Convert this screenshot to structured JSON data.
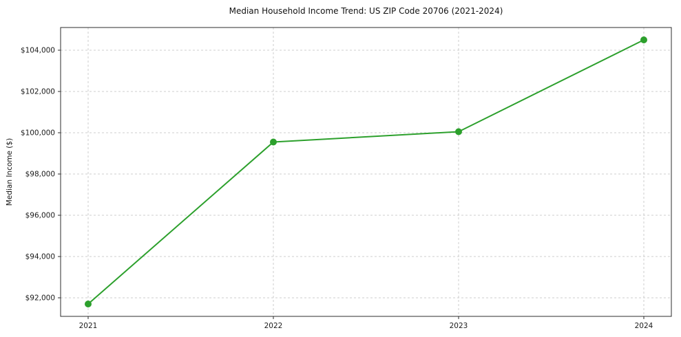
{
  "chart_data": {
    "type": "line",
    "title": "Median Household Income Trend: US ZIP Code 20706 (2021-2024)",
    "xlabel": "",
    "ylabel": "Median Income ($)",
    "categories": [
      "2021",
      "2022",
      "2023",
      "2024"
    ],
    "series": [
      {
        "name": "Median Household Income",
        "values": [
          91700,
          99550,
          100050,
          104500
        ]
      }
    ],
    "ylim": [
      91100,
      105100
    ],
    "yticks": [
      92000,
      94000,
      96000,
      98000,
      100000,
      102000,
      104000
    ],
    "ytick_labels": [
      "$92,000",
      "$94,000",
      "$96,000",
      "$98,000",
      "$100,000",
      "$102,000",
      "$104,000"
    ],
    "grid": true,
    "grid_style": "dashed",
    "legend_position": "none",
    "colors": {
      "line": "#2ca02c",
      "marker": "#2ca02c",
      "grid": "#cccccc",
      "axis": "#2b2b2b",
      "text": "#1a1a1a",
      "background": "#ffffff"
    }
  }
}
